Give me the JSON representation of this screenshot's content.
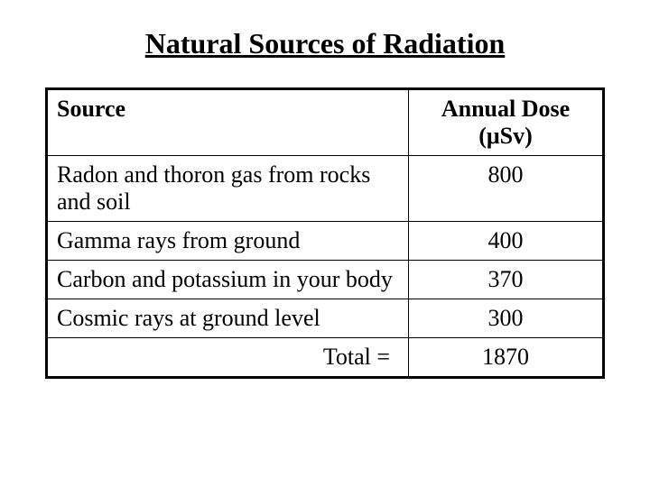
{
  "title": "Natural Sources of Radiation",
  "table": {
    "columns": [
      {
        "label": "Source",
        "align": "center",
        "width": "65%"
      },
      {
        "label": "Annual Dose (μSv)",
        "align": "center",
        "width": "35%"
      }
    ],
    "rows": [
      {
        "source": "Radon and thoron gas from rocks and soil",
        "dose": "800"
      },
      {
        "source": "Gamma rays from ground",
        "dose": "400"
      },
      {
        "source": "Carbon and potassium in your body",
        "dose": "370"
      },
      {
        "source": "Cosmic rays at ground level",
        "dose": "300"
      }
    ],
    "total": {
      "label": "Total =",
      "value": "1870"
    }
  },
  "styling": {
    "title_fontsize": 32,
    "cell_fontsize": 26,
    "border_color": "#000000",
    "outer_border_width": 3,
    "inner_border_width": 1,
    "background_color": "#ffffff",
    "text_color": "#000000",
    "font_family": "Times New Roman"
  }
}
